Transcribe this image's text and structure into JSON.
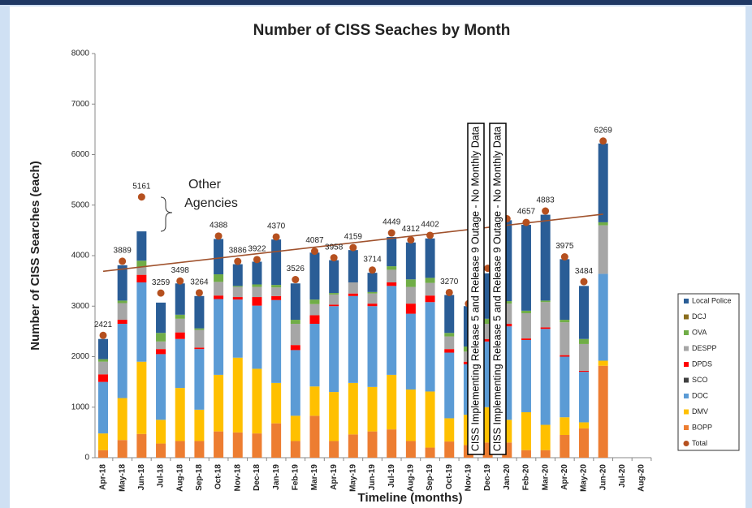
{
  "chart_data": {
    "type": "stacked_bar",
    "title": "Number of CISS Seaches by Month",
    "x_label": "Timeline (months)",
    "y_label": "Number of CISS Searches (each)",
    "categories": [
      "Apr-18",
      "May-18",
      "Jun-18",
      "Jul-18",
      "Aug-18",
      "Sep-18",
      "Oct-18",
      "Nov-18",
      "Dec-18",
      "Jan-19",
      "Feb-19",
      "Mar-19",
      "Apr-19",
      "May-19",
      "Jun-19",
      "Jul-19",
      "Aug-19",
      "Sep-19",
      "Oct-19",
      "Nov-19",
      "Dec-19",
      "Jan-20",
      "Feb-20",
      "Mar-20",
      "Apr-20",
      "May-20",
      "Jun-20",
      "Jul-20",
      "Aug-20"
    ],
    "series": [
      {
        "name": "BOPP",
        "color": "#ed7d31",
        "values": [
          150,
          350,
          470,
          280,
          330,
          330,
          520,
          500,
          480,
          680,
          330,
          830,
          330,
          460,
          520,
          560,
          330,
          200,
          320,
          250,
          300,
          300,
          150,
          150,
          450,
          580,
          1820,
          null,
          null
        ]
      },
      {
        "name": "DMV",
        "color": "#ffc000",
        "values": [
          330,
          830,
          1430,
          470,
          1050,
          620,
          1120,
          1480,
          1280,
          800,
          500,
          580,
          970,
          1020,
          880,
          1080,
          1020,
          1110,
          460,
          600,
          700,
          450,
          750,
          500,
          350,
          120,
          100,
          null,
          null
        ]
      },
      {
        "name": "DOC",
        "color": "#5b9bd5",
        "values": [
          1020,
          1470,
          1570,
          1300,
          970,
          1200,
          1500,
          1150,
          1250,
          1640,
          1300,
          1240,
          1700,
          1720,
          1600,
          1760,
          1500,
          1770,
          1300,
          1000,
          1300,
          1850,
          1430,
          1900,
          1200,
          1000,
          1720,
          null,
          null
        ]
      },
      {
        "name": "SCO",
        "color": "#404040",
        "values": [
          0,
          0,
          0,
          0,
          0,
          0,
          0,
          0,
          0,
          0,
          0,
          0,
          0,
          0,
          0,
          0,
          0,
          0,
          0,
          0,
          0,
          0,
          0,
          0,
          0,
          0,
          0,
          null,
          null
        ]
      },
      {
        "name": "DPDS",
        "color": "#ff0000",
        "values": [
          150,
          80,
          150,
          100,
          130,
          30,
          70,
          50,
          170,
          80,
          100,
          170,
          30,
          50,
          50,
          70,
          200,
          130,
          70,
          50,
          50,
          50,
          30,
          30,
          30,
          20,
          0,
          null,
          null
        ]
      },
      {
        "name": "DESPP",
        "color": "#a6a6a6",
        "values": [
          250,
          330,
          150,
          150,
          270,
          350,
          270,
          200,
          200,
          170,
          420,
          220,
          200,
          220,
          200,
          250,
          330,
          250,
          250,
          200,
          300,
          400,
          500,
          500,
          650,
          530,
          960,
          null,
          null
        ]
      },
      {
        "name": "OVA",
        "color": "#70ad47",
        "values": [
          50,
          50,
          130,
          170,
          80,
          30,
          150,
          20,
          50,
          50,
          80,
          90,
          30,
          0,
          30,
          70,
          150,
          100,
          70,
          100,
          100,
          50,
          50,
          30,
          50,
          100,
          60,
          null,
          null
        ]
      },
      {
        "name": "DCJ",
        "color": "#8a6d1c",
        "values": [
          0,
          0,
          0,
          0,
          0,
          0,
          0,
          0,
          0,
          0,
          0,
          0,
          0,
          0,
          0,
          0,
          0,
          0,
          0,
          0,
          0,
          0,
          0,
          0,
          0,
          0,
          0,
          null,
          null
        ]
      },
      {
        "name": "Local Police",
        "color": "#2a5d96",
        "values": [
          400,
          700,
          580,
          600,
          620,
          640,
          700,
          430,
          450,
          900,
          720,
          930,
          650,
          640,
          380,
          580,
          730,
          780,
          750,
          800,
          900,
          1600,
          1700,
          1700,
          1200,
          1050,
          1560,
          null,
          null
        ]
      }
    ],
    "totals": {
      "name": "Total",
      "color": "#b5501f",
      "values": [
        2421,
        3889,
        5161,
        3259,
        3498,
        3264,
        4388,
        3886,
        3922,
        4370,
        3526,
        4087,
        3958,
        4159,
        3714,
        4449,
        4312,
        4402,
        3270,
        3050,
        3750,
        4730,
        4657,
        4883,
        3975,
        3484,
        6269,
        null,
        null
      ],
      "value_labels": [
        "2421",
        "3889",
        "5161",
        "3259",
        "3498",
        "3264",
        "4388",
        "3886",
        "3922",
        "4370",
        "3526",
        "4087",
        "3958",
        "4159",
        "3714",
        "4449",
        "4312",
        "4402",
        "3270",
        null,
        null,
        null,
        "4657",
        "4883",
        "3975",
        "3484",
        "6269",
        null,
        null
      ]
    },
    "trendline": {
      "color": "#a0522d",
      "start": 3690,
      "end": 4820
    },
    "annotations": [
      "Other",
      "Agencies",
      "CISS Implementing Release 5 and Release 9 Outage - No Monthly Data",
      "CISS Implementing Release 5 and Release 9 Outage - No Monthly Data"
    ],
    "ylim": [
      0,
      8000
    ],
    "yticks": [
      0,
      1000,
      2000,
      3000,
      4000,
      5000,
      6000,
      7000,
      8000
    ]
  }
}
